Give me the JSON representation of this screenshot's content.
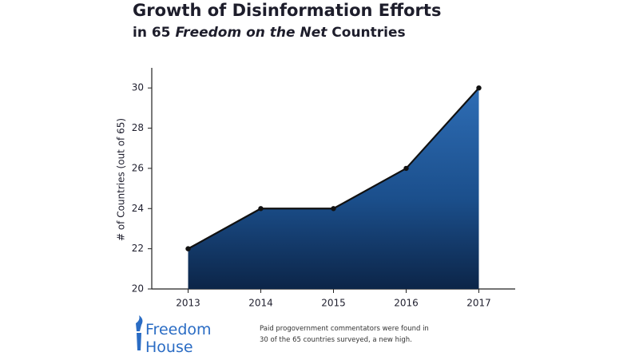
{
  "chart_data": {
    "type": "area",
    "title": "Growth of Disinformation Efforts",
    "subtitle": {
      "before": "in 65",
      "emphasis": "Freedom on the Net",
      "after": "Countries"
    },
    "y_label": "# of Countries (out of 65)",
    "categories": [
      "2013",
      "2014",
      "2015",
      "2016",
      "2017"
    ],
    "values": [
      22,
      24,
      24,
      26,
      30
    ],
    "ylim": [
      20,
      31
    ],
    "yticks": [
      20,
      22,
      24,
      26,
      28,
      30
    ],
    "color": "#1b4f8c",
    "line_color": "#111111",
    "logo": [
      "Freedom",
      "House"
    ],
    "note": [
      "Paid progovernment commentators were found in",
      "30 of the 65 countries surveyed, a new high."
    ]
  }
}
